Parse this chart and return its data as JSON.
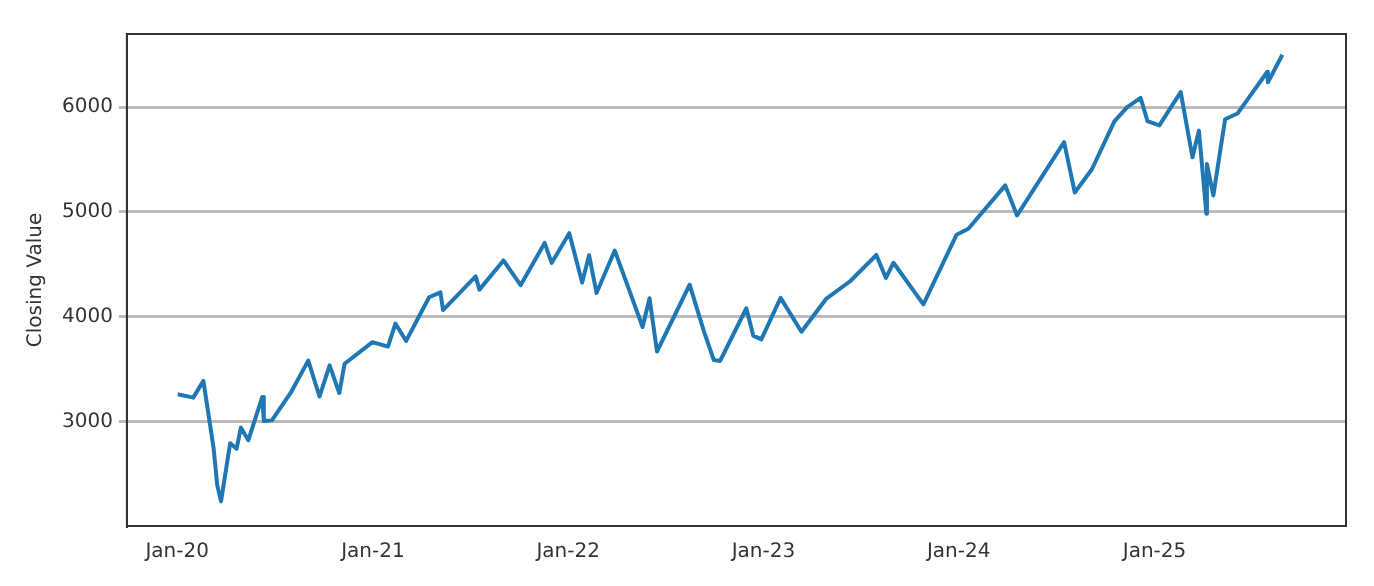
{
  "chart_data": {
    "type": "line",
    "ylabel": "Closing Value",
    "color": "#1f77b4",
    "marker": "none",
    "line_style": "solid",
    "grid": "y",
    "legend": false,
    "x": [
      "2020-01-02",
      "2020-01-31",
      "2020-02-19",
      "2020-03-09",
      "2020-03-16",
      "2020-03-23",
      "2020-04-09",
      "2020-04-21",
      "2020-04-29",
      "2020-05-13",
      "2020-06-08",
      "2020-06-11",
      "2020-06-26",
      "2020-07-31",
      "2020-09-02",
      "2020-09-23",
      "2020-10-12",
      "2020-10-30",
      "2020-11-09",
      "2020-12-31",
      "2021-01-29",
      "2021-02-12",
      "2021-03-04",
      "2021-04-16",
      "2021-05-07",
      "2021-05-12",
      "2021-07-12",
      "2021-07-19",
      "2021-09-02",
      "2021-10-04",
      "2021-11-18",
      "2021-12-01",
      "2022-01-03",
      "2022-01-27",
      "2022-02-09",
      "2022-02-23",
      "2022-03-29",
      "2022-05-02",
      "2022-05-20",
      "2022-06-02",
      "2022-06-16",
      "2022-08-16",
      "2022-09-12",
      "2022-09-30",
      "2022-10-12",
      "2022-11-30",
      "2022-12-13",
      "2022-12-28",
      "2023-02-02",
      "2023-03-13",
      "2023-04-28",
      "2023-06-12",
      "2023-07-31",
      "2023-08-18",
      "2023-09-01",
      "2023-10-27",
      "2023-12-28",
      "2024-01-19",
      "2024-03-28",
      "2024-04-19",
      "2024-07-16",
      "2024-08-05",
      "2024-09-06",
      "2024-10-18",
      "2024-11-11",
      "2024-12-06",
      "2024-12-19",
      "2025-01-10",
      "2025-02-19",
      "2025-03-13",
      "2025-03-25",
      "2025-04-08",
      "2025-04-09",
      "2025-04-21",
      "2025-05-13",
      "2025-06-05",
      "2025-07-31",
      "2025-08-01",
      "2025-08-28"
    ],
    "values": [
      3258,
      3226,
      3386,
      2746,
      2386,
      2237,
      2790,
      2737,
      2940,
      2820,
      3232,
      3002,
      3009,
      3271,
      3580,
      3237,
      3535,
      3270,
      3550,
      3756,
      3714,
      3934,
      3768,
      4185,
      4232,
      4063,
      4385,
      4258,
      4537,
      4300,
      4704,
      4513,
      4797,
      4326,
      4587,
      4225,
      4632,
      4155,
      3901,
      4176,
      3667,
      4305,
      3855,
      3586,
      3577,
      4080,
      3818,
      3783,
      4179,
      3856,
      4169,
      4338,
      4589,
      4370,
      4515,
      4117,
      4783,
      4840,
      5254,
      4967,
      5667,
      5186,
      5408,
      5865,
      6001,
      6090,
      5867,
      5827,
      6144,
      5522,
      5777,
      4982,
      5457,
      5158,
      5886,
      5940,
      6339,
      6238,
      6502
    ],
    "xlim": [
      "2019-09-29",
      "2025-12-25"
    ],
    "xticks": [
      {
        "value": "2020-01-01",
        "label": "Jan-20"
      },
      {
        "value": "2021-01-01",
        "label": "Jan-21"
      },
      {
        "value": "2022-01-01",
        "label": "Jan-22"
      },
      {
        "value": "2023-01-01",
        "label": "Jan-23"
      },
      {
        "value": "2024-01-01",
        "label": "Jan-24"
      },
      {
        "value": "2025-01-01",
        "label": "Jan-25"
      }
    ],
    "ylim": [
      2000,
      6700
    ],
    "yticks": [
      3000,
      4000,
      5000,
      6000
    ]
  }
}
